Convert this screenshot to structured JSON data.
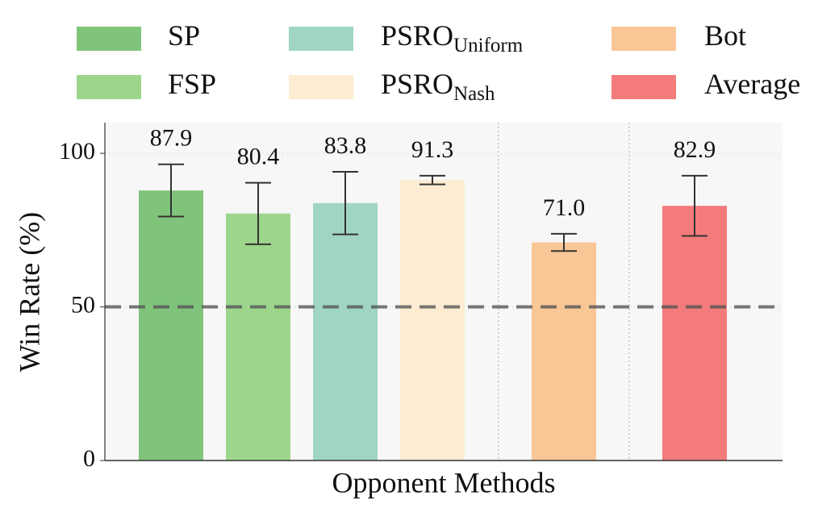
{
  "chart_data": {
    "type": "bar",
    "x_label": "Opponent Methods",
    "y_label": "Win Rate (%)",
    "ylim": [
      0,
      110
    ],
    "yticks": [
      0,
      50,
      100
    ],
    "grid": true,
    "reference_line": 50,
    "series": [
      {
        "name": "SP",
        "color": "#80c47c",
        "values": [
          87.9
        ],
        "errors": [
          8.5
        ],
        "value_labels": [
          "87.9"
        ]
      },
      {
        "name": "FSP",
        "color": "#9dd68b",
        "values": [
          80.4
        ],
        "errors": [
          10.0
        ],
        "value_labels": [
          "80.4"
        ]
      },
      {
        "name": "PSRO",
        "subscript": "Uniform",
        "color": "#a0d5c5",
        "values": [
          83.8
        ],
        "errors": [
          10.2
        ],
        "value_labels": [
          "83.8"
        ]
      },
      {
        "name": "PSRO",
        "subscript": "Nash",
        "color": "#fdecd2",
        "values": [
          91.3
        ],
        "errors": [
          1.4
        ],
        "value_labels": [
          "91.3"
        ]
      },
      {
        "name": "Bot",
        "color": "#f9c795",
        "values": [
          71.0
        ],
        "errors": [
          2.8
        ],
        "value_labels": [
          "71.0"
        ]
      },
      {
        "name": "Average",
        "color": "#f47b7b",
        "values": [
          82.9
        ],
        "errors": [
          9.8
        ],
        "value_labels": [
          "82.9"
        ]
      }
    ]
  }
}
